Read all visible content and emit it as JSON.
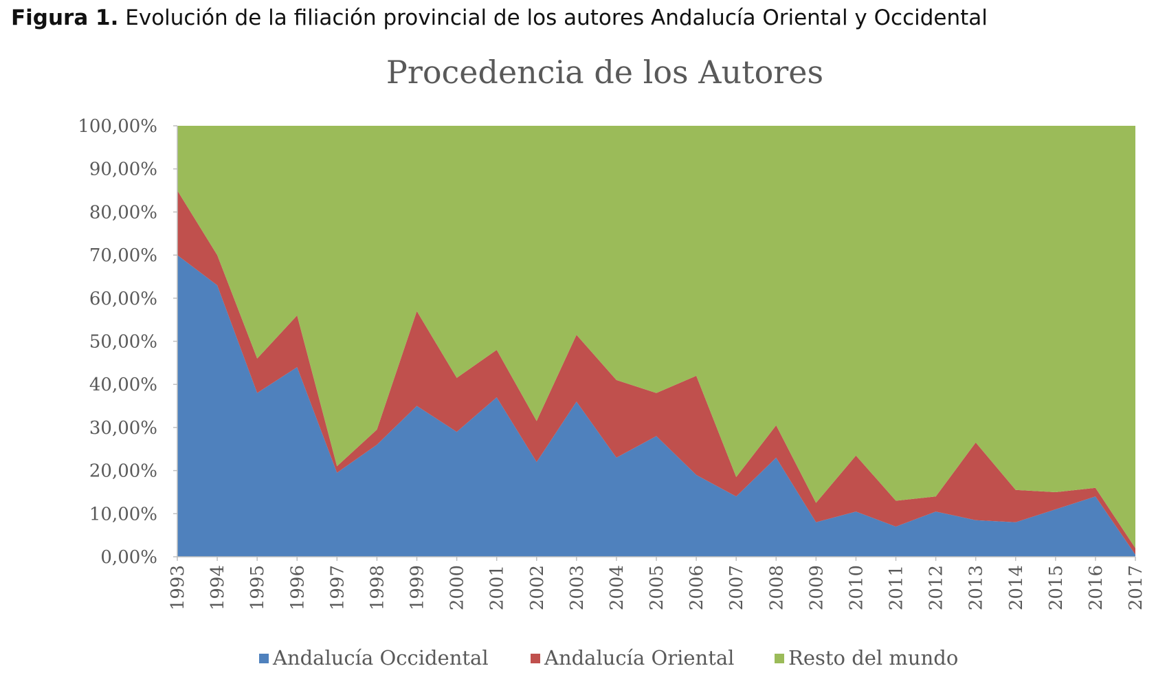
{
  "caption": {
    "lead": "Figura 1.",
    "text": " Evolución de la filiación provincial de los autores Andalucía Oriental y Occidental"
  },
  "chart_data": {
    "type": "area",
    "stacked": true,
    "title": "Procedencia de los Autores",
    "x": [
      "1993",
      "1994",
      "1995",
      "1996",
      "1997",
      "1998",
      "1999",
      "2000",
      "2001",
      "2002",
      "2003",
      "2004",
      "2005",
      "2006",
      "2007",
      "2008",
      "2009",
      "2010",
      "2011",
      "2012",
      "2013",
      "2014",
      "2015",
      "2016",
      "2017"
    ],
    "series": [
      {
        "name": "Andalucía Occidental",
        "color": "#4F81BD",
        "values": [
          0.7,
          0.63,
          0.38,
          0.44,
          0.195,
          0.26,
          0.35,
          0.29,
          0.37,
          0.22,
          0.36,
          0.23,
          0.28,
          0.19,
          0.14,
          0.23,
          0.08,
          0.105,
          0.07,
          0.105,
          0.085,
          0.08,
          0.11,
          0.14,
          0.005
        ]
      },
      {
        "name": "Andalucía Oriental",
        "color": "#C0504D",
        "values": [
          0.15,
          0.07,
          0.08,
          0.12,
          0.015,
          0.035,
          0.22,
          0.125,
          0.11,
          0.095,
          0.155,
          0.18,
          0.1,
          0.23,
          0.045,
          0.075,
          0.045,
          0.13,
          0.06,
          0.035,
          0.18,
          0.075,
          0.04,
          0.02,
          0.015
        ]
      },
      {
        "name": "Resto del mundo",
        "color": "#9BBB59",
        "values": [
          0.15,
          0.3,
          0.54,
          0.44,
          0.79,
          0.705,
          0.43,
          0.585,
          0.52,
          0.685,
          0.485,
          0.59,
          0.62,
          0.58,
          0.815,
          0.695,
          0.875,
          0.765,
          0.87,
          0.86,
          0.735,
          0.845,
          0.85,
          0.84,
          0.98
        ]
      }
    ],
    "yticks": [
      "0,00%",
      "10,00%",
      "20,00%",
      "30,00%",
      "40,00%",
      "50,00%",
      "60,00%",
      "70,00%",
      "80,00%",
      "90,00%",
      "100,00%"
    ],
    "ylim": [
      0,
      1
    ],
    "grid": false,
    "legend": "bottom"
  }
}
